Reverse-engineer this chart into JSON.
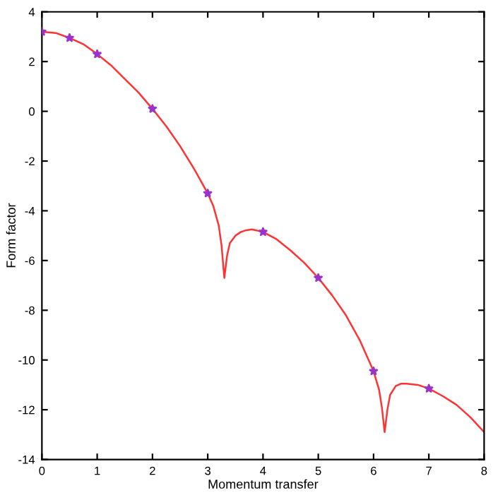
{
  "chart_data": {
    "type": "line",
    "xlabel": "Momentum transfer",
    "ylabel": "Form factor",
    "xlim": [
      0,
      8
    ],
    "ylim": [
      -14,
      4
    ],
    "xticks": [
      0,
      1,
      2,
      3,
      4,
      5,
      6,
      7,
      8
    ],
    "yticks": [
      -14,
      -12,
      -10,
      -8,
      -6,
      -4,
      -2,
      0,
      2,
      4
    ],
    "grid": false,
    "legend": false,
    "series": [
      {
        "color": "#ff3333",
        "marker": "none",
        "line_style": "solid",
        "x": [
          0,
          0.25,
          0.5,
          0.75,
          1,
          1.25,
          1.5,
          1.75,
          2,
          2.25,
          2.5,
          2.75,
          3,
          3.1,
          3.2,
          3.25,
          3.3,
          3.35,
          3.4,
          3.5,
          3.6,
          3.7,
          3.8,
          4,
          4.25,
          4.5,
          4.75,
          5,
          5.25,
          5.5,
          5.75,
          6,
          6.1,
          6.15,
          6.2,
          6.25,
          6.3,
          6.4,
          6.5,
          6.6,
          6.8,
          7,
          7.25,
          7.5,
          7.75,
          8
        ],
        "values": [
          3.2,
          3.15,
          2.95,
          2.7,
          2.3,
          1.85,
          1.3,
          0.75,
          0.1,
          -0.6,
          -1.4,
          -2.3,
          -3.3,
          -3.8,
          -4.6,
          -5.4,
          -6.7,
          -5.8,
          -5.3,
          -5.0,
          -4.85,
          -4.78,
          -4.75,
          -4.85,
          -5.15,
          -5.6,
          -6.1,
          -6.7,
          -7.4,
          -8.2,
          -9.2,
          -10.45,
          -11.2,
          -11.9,
          -12.9,
          -12.0,
          -11.4,
          -11.05,
          -10.95,
          -10.95,
          -11.0,
          -11.15,
          -11.45,
          -11.8,
          -12.3,
          -12.9
        ]
      },
      {
        "type": "scatter",
        "color": "#9933cc",
        "marker": "star",
        "x": [
          0,
          0.5,
          1,
          2,
          3,
          4,
          5,
          6,
          7
        ],
        "values": [
          3.2,
          2.95,
          2.3,
          0.1,
          -3.3,
          -4.85,
          -6.7,
          -10.45,
          -11.15
        ]
      }
    ]
  }
}
